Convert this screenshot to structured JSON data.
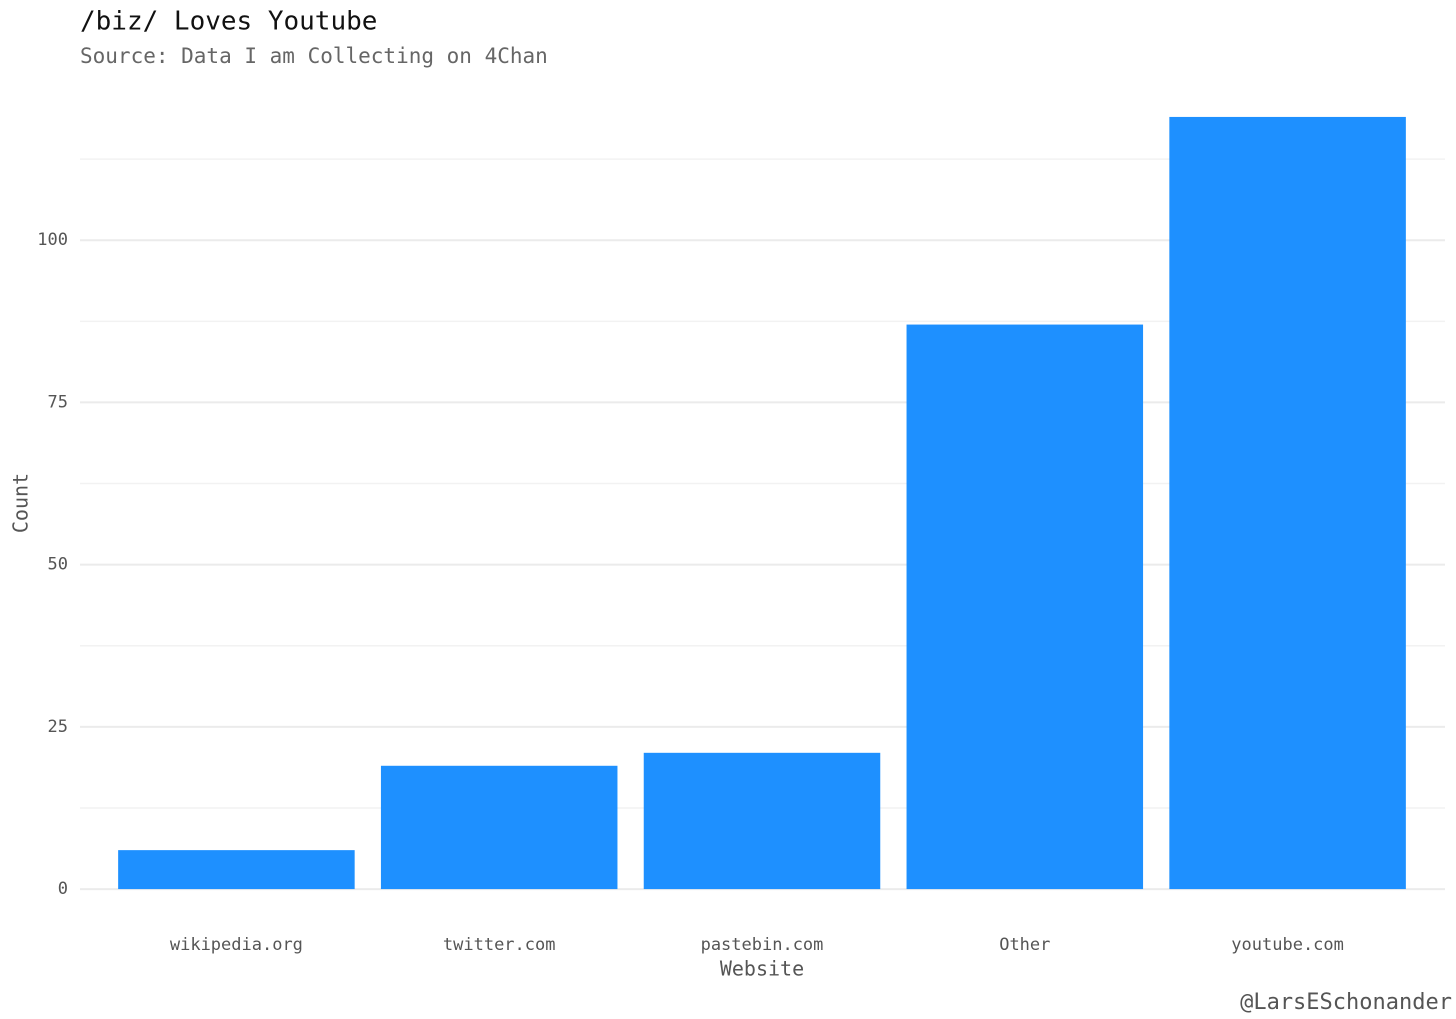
{
  "chart_data": {
    "type": "bar",
    "title": "/biz/ Loves Youtube",
    "subtitle": "Source: Data I am Collecting on 4Chan",
    "x_label": "Website",
    "y_label": "Count",
    "caption": "@LarsESchonander",
    "categories": [
      "wikipedia.org",
      "twitter.com",
      "pastebin.com",
      "Other",
      "youtube.com"
    ],
    "values": [
      6,
      19,
      21,
      87,
      119
    ],
    "color": "#1e90ff",
    "ylim": [
      -6,
      125
    ],
    "yticks": [
      0,
      25,
      50,
      75,
      100
    ],
    "minor_yticks": [
      12.5,
      37.5,
      62.5,
      87.5,
      112.5
    ],
    "grid": true
  }
}
